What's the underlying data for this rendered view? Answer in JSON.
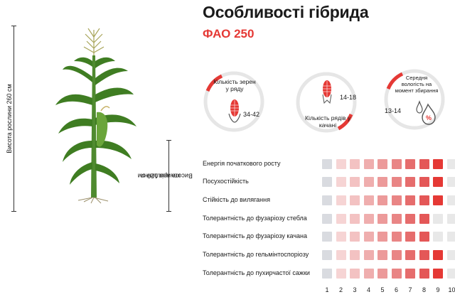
{
  "header": {
    "title": "Особливості гібрида",
    "fao": "ФАО 250"
  },
  "plant": {
    "height_label": "Висота рослини 260 см",
    "ear_height_label_line1": "Висота кріплення",
    "ear_height_label_line2": "качана 120 см"
  },
  "stats": {
    "grains_per_row": {
      "label_line1": "Кількість зерен",
      "label_line2": "у ряду",
      "value": "34-42"
    },
    "rows_per_ear": {
      "label_line1": "Кількість рядів у",
      "label_line2": "качані",
      "value": "14-18"
    },
    "moisture": {
      "label_line1": "Середня",
      "label_line2": "вологість на",
      "label_line3": "момент збирання",
      "value": "13-14",
      "icon_text": "%"
    }
  },
  "traits": [
    {
      "name": "Енергія початкового росту",
      "score": 9
    },
    {
      "name": "Посухостійкість",
      "score": 9
    },
    {
      "name": "Стійкість до вилягання",
      "score": 9
    },
    {
      "name": "Толерантність до фузаріозу стебла",
      "score": 8
    },
    {
      "name": "Толерантність до фузаріозу качана",
      "score": 8
    },
    {
      "name": "Толерантність до гельмінтоспоріозу",
      "score": 9
    },
    {
      "name": "Толерантність до пухирчастої сажки",
      "score": 9
    }
  ],
  "scale": [
    "1",
    "2",
    "3",
    "4",
    "5",
    "6",
    "7",
    "8",
    "9",
    "10"
  ],
  "colors": {
    "accent": "#e53935",
    "empty_cell": "#d9d9d9",
    "gradient": [
      "#d9dbe0",
      "#f6d4d4",
      "#f3c2c2",
      "#efaeae",
      "#ec9a9a",
      "#e98585",
      "#e66d6d",
      "#e45757",
      "#e53935",
      "#e8e8e8"
    ]
  }
}
